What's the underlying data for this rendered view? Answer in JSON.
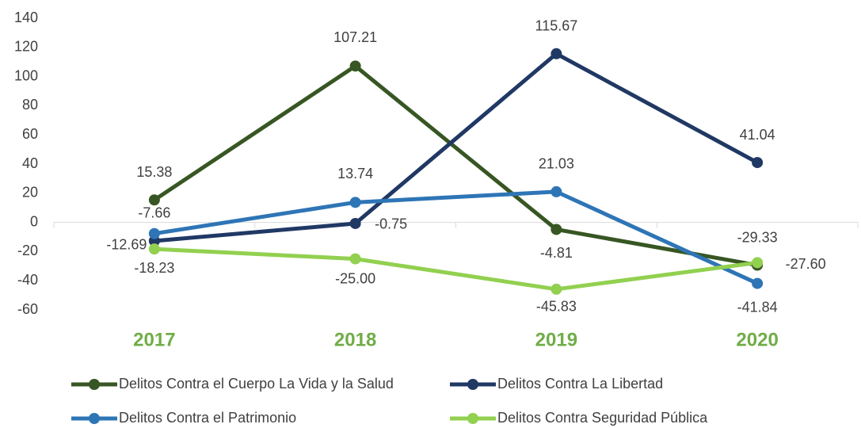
{
  "chart_data": {
    "type": "line",
    "categories": [
      "2017",
      "2018",
      "2019",
      "2020"
    ],
    "series": [
      {
        "name": "Delitos Contra el Cuerpo La Vida y la Salud",
        "color": "#375623",
        "values": [
          15.38,
          107.21,
          -4.81,
          -29.33
        ],
        "value_labels": [
          "15.38",
          "107.21",
          "-4.81",
          "-29.33"
        ]
      },
      {
        "name": "Delitos Contra La Libertad",
        "color": "#203864",
        "values": [
          -12.69,
          -0.75,
          115.67,
          41.04
        ],
        "value_labels": [
          "-12.69",
          "-0.75",
          "115.67",
          "41.04"
        ]
      },
      {
        "name": "Delitos Contra el Patrimonio",
        "color": "#2e75b6",
        "values": [
          -7.66,
          13.74,
          21.03,
          -41.84
        ],
        "value_labels": [
          "-7.66",
          "13.74",
          "21.03",
          "-41.84"
        ]
      },
      {
        "name": "Delitos Contra Seguridad Pública",
        "color": "#92d050",
        "values": [
          -18.23,
          -25,
          -45.83,
          -27.6
        ],
        "value_labels": [
          "-18.23",
          "-25.00",
          "-45.83",
          "-27.60"
        ]
      }
    ],
    "ylim": [
      -60,
      140
    ],
    "yticks": [
      -60,
      -40,
      -20,
      0,
      20,
      40,
      60,
      80,
      100,
      120,
      140
    ],
    "grid": false,
    "legend": "bottom"
  }
}
